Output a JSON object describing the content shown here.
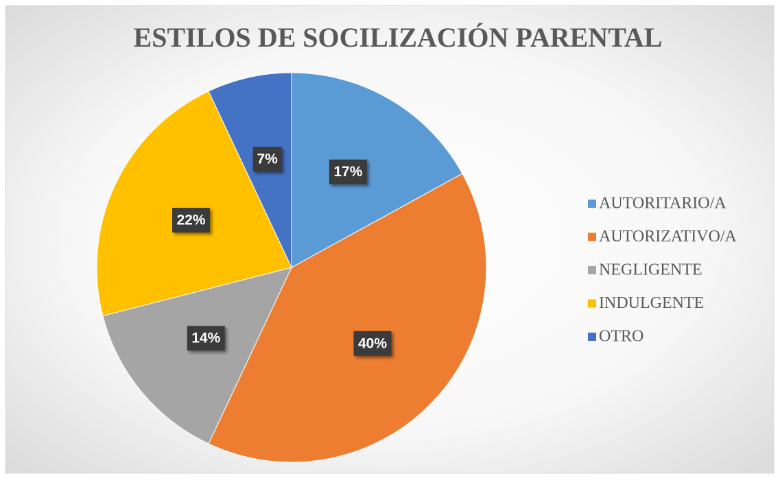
{
  "chart_data": {
    "type": "pie",
    "title": "ESTILOS DE SOCILIZACIÓN PARENTAL",
    "categories": [
      "AUTORITARIO/A",
      "AUTORIZATIVO/A",
      "NEGLIGENTE",
      "INDULGENTE",
      "OTRO"
    ],
    "values": [
      17,
      40,
      14,
      22,
      7
    ],
    "value_labels": [
      "17%",
      "40%",
      "14%",
      "22%",
      "7%"
    ],
    "colors": [
      "#5b9bd5",
      "#ed7d31",
      "#a5a5a5",
      "#ffc000",
      "#4472c4"
    ],
    "legend": "right"
  }
}
